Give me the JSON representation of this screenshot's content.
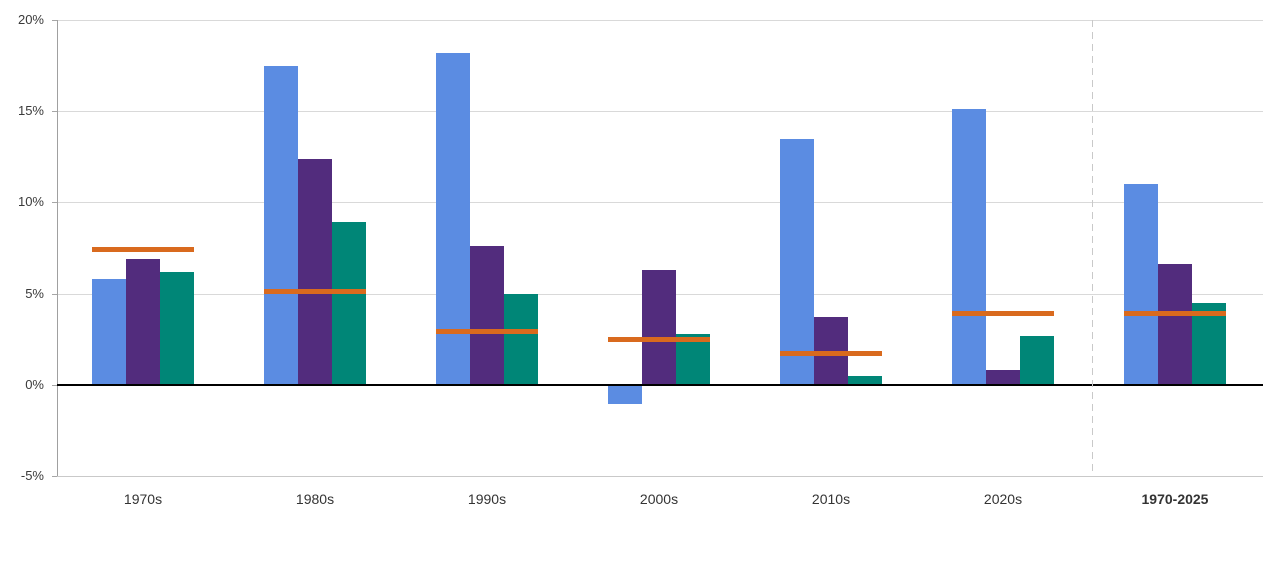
{
  "chart_data": {
    "type": "bar",
    "title": "",
    "xlabel": "",
    "ylabel": "",
    "categories": [
      "1970s",
      "1980s",
      "1990s",
      "2000s",
      "2010s",
      "2020s",
      "1970-2025"
    ],
    "series": [
      {
        "name": "blue",
        "color": "#5B8CE2",
        "values": [
          5.8,
          17.5,
          18.2,
          -1.0,
          13.5,
          15.1,
          11.0
        ]
      },
      {
        "name": "purple",
        "color": "#522C7D",
        "values": [
          6.9,
          12.4,
          7.6,
          6.3,
          3.7,
          0.8,
          6.6
        ]
      },
      {
        "name": "teal",
        "color": "#008677",
        "values": [
          6.2,
          8.9,
          5.0,
          2.8,
          0.5,
          2.7,
          4.5
        ]
      }
    ],
    "marker_series": {
      "name": "orange-line",
      "color": "#D96A1E",
      "values": [
        7.4,
        5.1,
        2.9,
        2.5,
        1.7,
        3.9,
        3.9
      ]
    },
    "ylim": [
      -5,
      20
    ],
    "y_ticks": [
      {
        "label": "20%",
        "value": 20
      },
      {
        "label": "15%",
        "value": 15
      },
      {
        "label": "10%",
        "value": 10
      },
      {
        "label": "5%",
        "value": 5
      },
      {
        "label": "0%",
        "value": 0
      },
      {
        "label": "-5%",
        "value": -5
      }
    ],
    "grid": true,
    "legend": "none",
    "zero_axis_color": "#000000",
    "separator_before_category": "1970-2025",
    "bold_categories": [
      "1970-2025"
    ]
  }
}
